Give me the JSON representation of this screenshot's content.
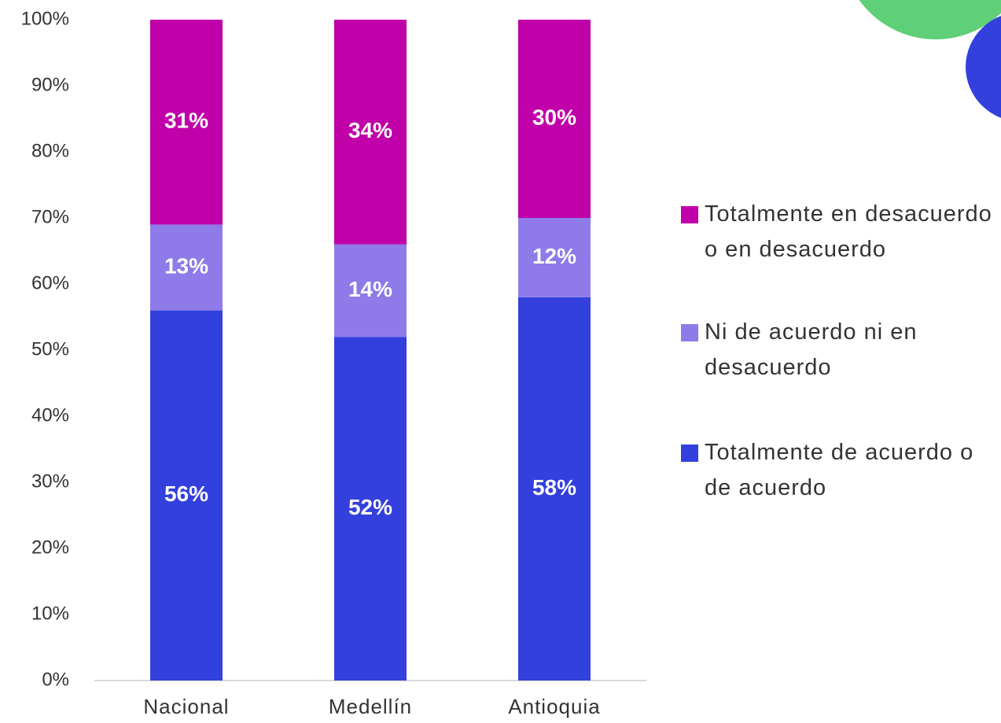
{
  "chart_data": {
    "type": "stacked_bar",
    "categories": [
      "Nacional",
      "Medellín",
      "Antioquia"
    ],
    "series": [
      {
        "name": "Totalmente de acuerdo o de acuerdo",
        "color": "#3340dd",
        "values": [
          56,
          52,
          58
        ],
        "value_labels": [
          "56%",
          "52%",
          "58%"
        ]
      },
      {
        "name": "Ni de acuerdo ni en desacuerdo",
        "color": "#8e7ae8",
        "values": [
          13,
          14,
          12
        ],
        "value_labels": [
          "13%",
          "14%",
          "12%"
        ]
      },
      {
        "name": "Totalmente en desacuerdo o en desacuerdo",
        "color": "#c000a8",
        "values": [
          31,
          34,
          30
        ],
        "value_labels": [
          "31%",
          "34%",
          "30%"
        ]
      }
    ],
    "ylim": [
      0,
      100
    ],
    "yticks": [
      {
        "value": 0,
        "label": "0%"
      },
      {
        "value": 10,
        "label": "10%"
      },
      {
        "value": 20,
        "label": "20%"
      },
      {
        "value": 30,
        "label": "30%"
      },
      {
        "value": 40,
        "label": "40%"
      },
      {
        "value": 50,
        "label": "50%"
      },
      {
        "value": 60,
        "label": "60%"
      },
      {
        "value": 70,
        "label": "70%"
      },
      {
        "value": 80,
        "label": "80%"
      },
      {
        "value": 90,
        "label": "90%"
      },
      {
        "value": 100,
        "label": "100%"
      }
    ],
    "grid": false,
    "legend": "right"
  }
}
